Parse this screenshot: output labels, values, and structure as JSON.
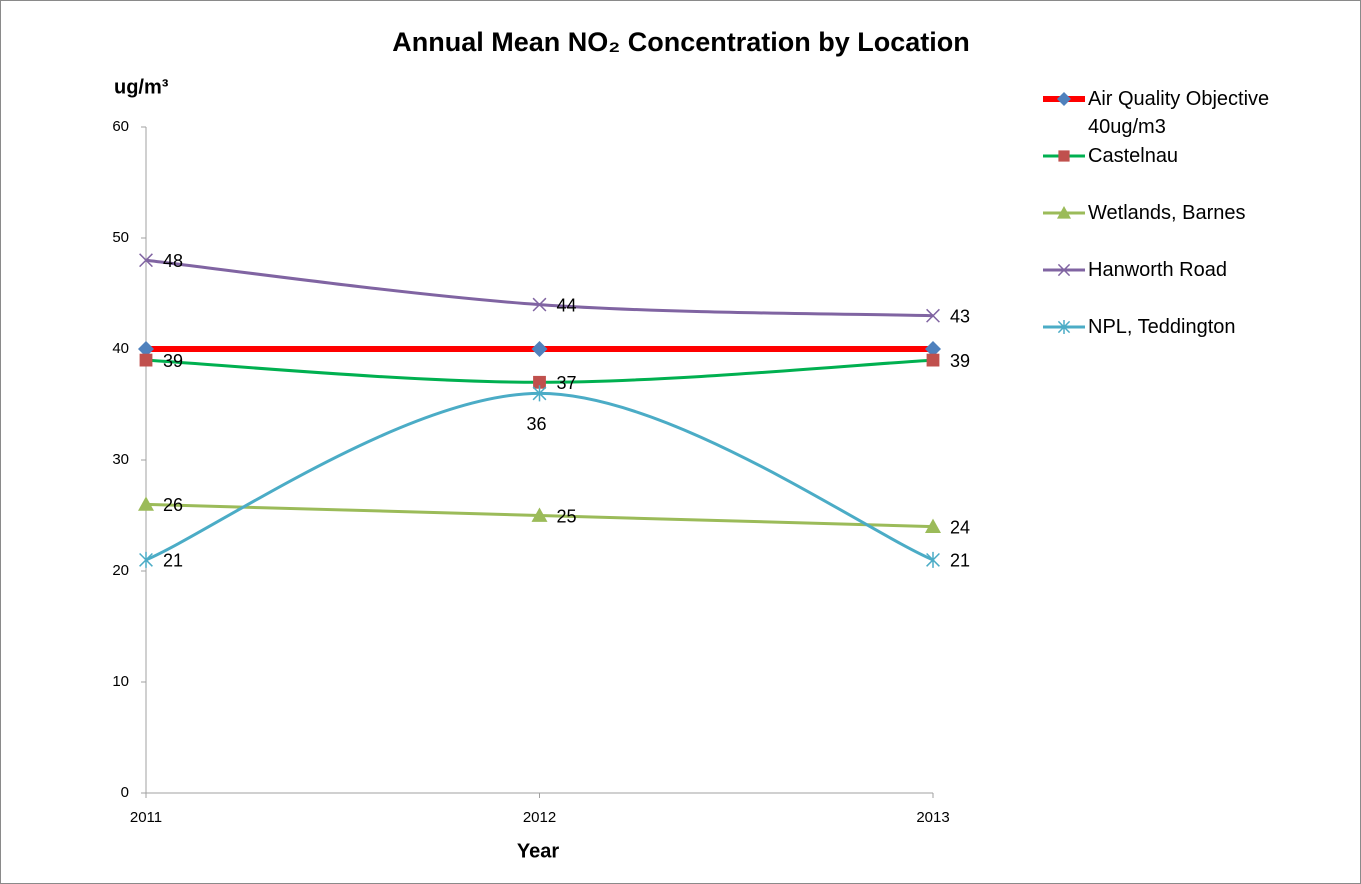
{
  "chart_data": {
    "type": "line",
    "title": "Annual Mean NO₂ Concentration by Location",
    "y_label": "ug/m³",
    "x_label": "Year",
    "categories": [
      "2011",
      "2012",
      "2013"
    ],
    "ylim": [
      0,
      60
    ],
    "yticks": [
      0,
      10,
      20,
      30,
      40,
      50,
      60
    ],
    "smooth": true,
    "legend": "right",
    "series": [
      {
        "name": "Air Quality Objective 40ug/m3",
        "color": "#ff0000",
        "marker": "diamond",
        "marker_color": "#4f81bd",
        "data_labels": false,
        "values": [
          40,
          40,
          40
        ]
      },
      {
        "name": "Castelnau",
        "color": "#00b050",
        "marker": "square",
        "marker_color": "#c0504d",
        "data_labels": true,
        "values": [
          39,
          37,
          39
        ]
      },
      {
        "name": "Wetlands, Barnes",
        "color": "#9bbb59",
        "marker": "triangle",
        "marker_color": "#9bbb59",
        "data_labels": true,
        "values": [
          26,
          25,
          24
        ]
      },
      {
        "name": "Hanworth Road",
        "color": "#8064a2",
        "marker": "x",
        "marker_color": "#8064a2",
        "data_labels": true,
        "values": [
          48,
          44,
          43
        ]
      },
      {
        "name": "NPL, Teddington",
        "color": "#4bacc6",
        "marker": "star",
        "marker_color": "#4bacc6",
        "data_labels": true,
        "values": [
          21,
          36,
          21
        ]
      }
    ]
  }
}
